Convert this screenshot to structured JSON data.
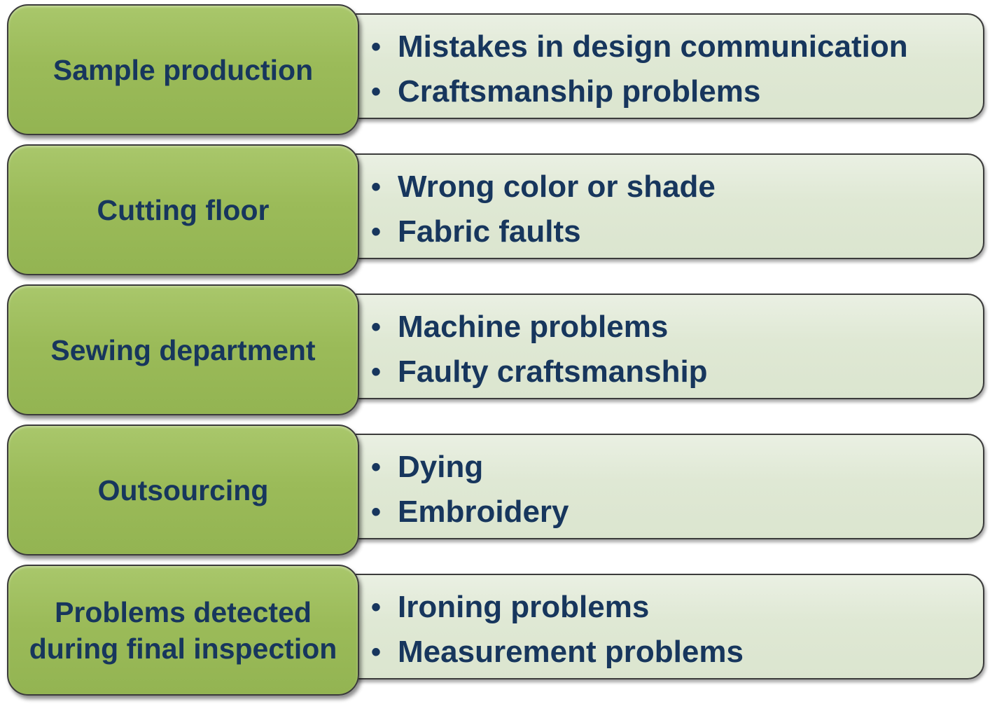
{
  "stages": [
    {
      "label": "Sample production",
      "problems": [
        "Mistakes in design communication",
        "Craftsmanship problems"
      ]
    },
    {
      "label": "Cutting floor",
      "problems": [
        "Wrong color or shade",
        "Fabric faults"
      ]
    },
    {
      "label": "Sewing department",
      "problems": [
        "Machine problems",
        "Faulty craftsmanship"
      ]
    },
    {
      "label": "Outsourcing",
      "problems": [
        "Dying",
        "Embroidery"
      ]
    },
    {
      "label": "Problems detected during final inspection",
      "problems": [
        "Ironing problems",
        "Measurement problems"
      ]
    }
  ],
  "bullet_symbol": "•",
  "colors": {
    "stage_fill": "#9bbb59",
    "detail_fill": "#dfe8d4",
    "text": "#17365d",
    "outline": "#3b3b3b"
  }
}
